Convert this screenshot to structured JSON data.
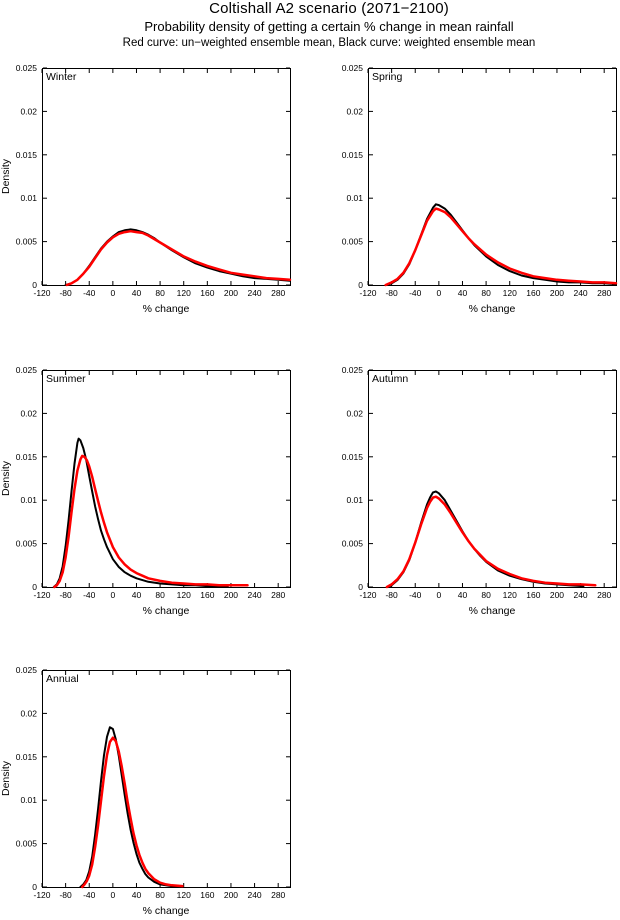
{
  "header": {
    "title": "Coltishall A2 scenario (2071−2100)",
    "subtitle": "Probability density of getting a certain % change in mean rainfall",
    "note": "Red curve: un−weighted ensemble mean, Black curve: weighted ensemble mean"
  },
  "colors": {
    "weighted_curve": "#000000",
    "unweighted_curve": "#ff0000",
    "background": "#ffffff",
    "axis": "#000000"
  },
  "chart_data": {
    "type": "line",
    "title": "Coltishall A2 scenario (2071−2100)",
    "subtitle": "Probability density of getting a certain % change in mean rainfall",
    "legend_note": "Red curve: un−weighted ensemble mean, Black curve: weighted ensemble mean",
    "xlabel": "% change",
    "ylabel": "Density",
    "xlim": [
      -120,
      300
    ],
    "ylim": [
      0,
      0.025
    ],
    "grid": false,
    "box": true,
    "xticks": [
      -120,
      -80,
      -40,
      0,
      40,
      80,
      120,
      160,
      200,
      240,
      280
    ],
    "yticks": [
      0,
      0.005,
      0.01,
      0.015,
      0.02,
      0.025
    ],
    "ytick_labels": [
      "0",
      "0.005",
      "0.01",
      "0.015",
      "0.02",
      "0.025"
    ],
    "panels": [
      {
        "label": "Winter",
        "show_ylabel": true,
        "series": [
          {
            "key": "weighted",
            "name": "weighted ensemble mean",
            "color": "#000000",
            "width": 2,
            "x": [
              -80,
              -70,
              -60,
              -50,
              -40,
              -30,
              -20,
              -10,
              0,
              10,
              20,
              30,
              40,
              50,
              60,
              70,
              80,
              100,
              120,
              140,
              160,
              180,
              200,
              220,
              240,
              260,
              280,
              300
            ],
            "y": [
              0,
              0.0002,
              0.0006,
              0.0013,
              0.0022,
              0.0032,
              0.0042,
              0.005,
              0.0056,
              0.0061,
              0.0063,
              0.0064,
              0.0063,
              0.0061,
              0.0058,
              0.0054,
              0.0049,
              0.004,
              0.0032,
              0.0025,
              0.002,
              0.0016,
              0.0013,
              0.001,
              0.0008,
              0.0007,
              0.0006,
              0.0005
            ]
          },
          {
            "key": "unweighted",
            "name": "un−weighted ensemble mean",
            "color": "#ff0000",
            "width": 2.5,
            "x": [
              -78,
              -70,
              -60,
              -50,
              -40,
              -30,
              -20,
              -10,
              0,
              10,
              20,
              30,
              40,
              50,
              60,
              70,
              80,
              100,
              120,
              140,
              160,
              180,
              200,
              220,
              240,
              260,
              280,
              300
            ],
            "y": [
              0,
              0.0002,
              0.0006,
              0.0013,
              0.0021,
              0.0031,
              0.0041,
              0.0049,
              0.0055,
              0.0059,
              0.0061,
              0.0062,
              0.0061,
              0.006,
              0.0057,
              0.0053,
              0.0049,
              0.0041,
              0.0033,
              0.0027,
              0.0022,
              0.0018,
              0.0014,
              0.0012,
              0.001,
              0.0008,
              0.0007,
              0.0006
            ]
          }
        ]
      },
      {
        "label": "Spring",
        "show_ylabel": false,
        "series": [
          {
            "key": "weighted",
            "name": "weighted ensemble mean",
            "color": "#000000",
            "width": 2,
            "x": [
              -88,
              -80,
              -70,
              -60,
              -50,
              -40,
              -30,
              -20,
              -10,
              -5,
              0,
              10,
              20,
              30,
              40,
              50,
              60,
              80,
              100,
              120,
              140,
              160,
              180,
              200,
              220,
              240,
              260,
              280,
              300
            ],
            "y": [
              0,
              0.0002,
              0.0006,
              0.0013,
              0.0024,
              0.004,
              0.0058,
              0.0076,
              0.0089,
              0.0093,
              0.0092,
              0.0088,
              0.0081,
              0.0072,
              0.0063,
              0.0054,
              0.0046,
              0.0033,
              0.0023,
              0.0016,
              0.0011,
              0.0008,
              0.0006,
              0.0004,
              0.0003,
              0.0003,
              0.0002,
              0.0002,
              0.0001
            ]
          },
          {
            "key": "unweighted",
            "name": "un−weighted ensemble mean",
            "color": "#ff0000",
            "width": 2.5,
            "x": [
              -90,
              -80,
              -70,
              -60,
              -50,
              -40,
              -30,
              -20,
              -10,
              -5,
              0,
              10,
              20,
              30,
              40,
              50,
              60,
              80,
              100,
              120,
              140,
              160,
              180,
              200,
              220,
              240,
              260,
              280,
              300
            ],
            "y": [
              0,
              0.0003,
              0.0007,
              0.0014,
              0.0025,
              0.004,
              0.0057,
              0.0074,
              0.0085,
              0.0088,
              0.0087,
              0.0084,
              0.0078,
              0.007,
              0.0062,
              0.0054,
              0.0047,
              0.0035,
              0.0026,
              0.0019,
              0.0014,
              0.001,
              0.0008,
              0.0006,
              0.0005,
              0.0004,
              0.0003,
              0.0003,
              0.0002
            ]
          }
        ]
      },
      {
        "label": "Summer",
        "show_ylabel": true,
        "series": [
          {
            "key": "weighted",
            "name": "weighted ensemble mean",
            "color": "#000000",
            "width": 2,
            "x": [
              -100,
              -95,
              -90,
              -85,
              -80,
              -75,
              -70,
              -65,
              -60,
              -58,
              -55,
              -50,
              -45,
              -40,
              -35,
              -30,
              -25,
              -20,
              -15,
              -10,
              0,
              10,
              20,
              30,
              40,
              50,
              60,
              80,
              100,
              120,
              140,
              160,
              180,
              195
            ],
            "y": [
              0,
              0.0003,
              0.001,
              0.0024,
              0.0047,
              0.0077,
              0.011,
              0.0142,
              0.0166,
              0.0171,
              0.0169,
              0.016,
              0.0146,
              0.0128,
              0.011,
              0.0093,
              0.0078,
              0.0065,
              0.0055,
              0.0046,
              0.0032,
              0.0023,
              0.0017,
              0.0013,
              0.001,
              0.0008,
              0.0006,
              0.0004,
              0.0003,
              0.0002,
              0.0002,
              0.0001,
              0.0001,
              0.0001
            ]
          },
          {
            "key": "unweighted",
            "name": "un−weighted ensemble mean",
            "color": "#ff0000",
            "width": 2.5,
            "x": [
              -99,
              -95,
              -90,
              -85,
              -80,
              -75,
              -70,
              -65,
              -60,
              -55,
              -52,
              -48,
              -44,
              -40,
              -35,
              -30,
              -25,
              -20,
              -15,
              -10,
              0,
              10,
              20,
              30,
              40,
              50,
              60,
              80,
              100,
              120,
              140,
              160,
              180,
              200,
              215,
              228
            ],
            "y": [
              0,
              0.0002,
              0.0007,
              0.0017,
              0.0034,
              0.0058,
              0.0086,
              0.0113,
              0.0134,
              0.0147,
              0.0151,
              0.015,
              0.0146,
              0.0139,
              0.0127,
              0.0113,
              0.0099,
              0.0086,
              0.0074,
              0.0063,
              0.0046,
              0.0034,
              0.0026,
              0.002,
              0.0016,
              0.0013,
              0.001,
              0.0007,
              0.0005,
              0.0004,
              0.0003,
              0.0003,
              0.0002,
              0.0002,
              0.0002,
              0.0002
            ]
          }
        ]
      },
      {
        "label": "Autumn",
        "show_ylabel": false,
        "series": [
          {
            "key": "weighted",
            "name": "weighted ensemble mean",
            "color": "#000000",
            "width": 2,
            "x": [
              -85,
              -80,
              -70,
              -60,
              -50,
              -40,
              -30,
              -20,
              -15,
              -10,
              -5,
              0,
              10,
              20,
              30,
              40,
              50,
              60,
              70,
              80,
              100,
              120,
              140,
              160,
              180,
              200,
              220,
              245
            ],
            "y": [
              0,
              0.0002,
              0.0008,
              0.0017,
              0.0031,
              0.0051,
              0.0074,
              0.0095,
              0.0103,
              0.0109,
              0.011,
              0.0108,
              0.01,
              0.0088,
              0.0076,
              0.0064,
              0.0053,
              0.0044,
              0.0036,
              0.0029,
              0.0019,
              0.0013,
              0.0009,
              0.0006,
              0.0004,
              0.0003,
              0.0002,
              0.0001
            ]
          },
          {
            "key": "unweighted",
            "name": "un−weighted ensemble mean",
            "color": "#ff0000",
            "width": 2.5,
            "x": [
              -88,
              -80,
              -70,
              -60,
              -50,
              -40,
              -30,
              -20,
              -15,
              -10,
              -5,
              0,
              10,
              20,
              30,
              40,
              50,
              60,
              70,
              80,
              100,
              120,
              140,
              160,
              180,
              200,
              220,
              240,
              265
            ],
            "y": [
              0,
              0.0003,
              0.0009,
              0.0018,
              0.0032,
              0.0051,
              0.0072,
              0.0091,
              0.0098,
              0.0103,
              0.0104,
              0.0102,
              0.0095,
              0.0085,
              0.0074,
              0.0063,
              0.0053,
              0.0044,
              0.0037,
              0.003,
              0.0021,
              0.0015,
              0.001,
              0.0007,
              0.0005,
              0.0004,
              0.0003,
              0.0003,
              0.0002
            ]
          }
        ]
      },
      {
        "label": "Annual",
        "show_ylabel": true,
        "series": [
          {
            "key": "weighted",
            "name": "weighted ensemble mean",
            "color": "#000000",
            "width": 2,
            "x": [
              -55,
              -50,
              -45,
              -40,
              -35,
              -30,
              -25,
              -20,
              -15,
              -10,
              -5,
              0,
              5,
              10,
              15,
              20,
              25,
              30,
              35,
              40,
              45,
              50,
              55,
              60,
              70,
              80,
              90,
              100,
              115
            ],
            "y": [
              0,
              0.0003,
              0.0008,
              0.0018,
              0.0035,
              0.006,
              0.009,
              0.0122,
              0.0152,
              0.0173,
              0.0184,
              0.0182,
              0.017,
              0.0151,
              0.0129,
              0.0106,
              0.0085,
              0.0066,
              0.0051,
              0.0038,
              0.0028,
              0.0021,
              0.0015,
              0.0011,
              0.0006,
              0.0003,
              0.0002,
              0.0001,
              0.0001
            ]
          },
          {
            "key": "unweighted",
            "name": "un−weighted ensemble mean",
            "color": "#ff0000",
            "width": 2.5,
            "x": [
              -52,
              -48,
              -44,
              -40,
              -35,
              -30,
              -25,
              -20,
              -15,
              -10,
              -5,
              0,
              5,
              10,
              15,
              20,
              25,
              30,
              35,
              40,
              45,
              50,
              55,
              60,
              70,
              80,
              90,
              100,
              118
            ],
            "y": [
              0,
              0.0003,
              0.0007,
              0.0013,
              0.0026,
              0.0046,
              0.0071,
              0.0099,
              0.0128,
              0.0152,
              0.0167,
              0.0172,
              0.0168,
              0.0156,
              0.0139,
              0.0119,
              0.0098,
              0.0079,
              0.0062,
              0.0048,
              0.0037,
              0.0028,
              0.0021,
              0.0016,
              0.0009,
              0.0005,
              0.0003,
              0.0002,
              0.0001
            ]
          }
        ]
      }
    ]
  }
}
